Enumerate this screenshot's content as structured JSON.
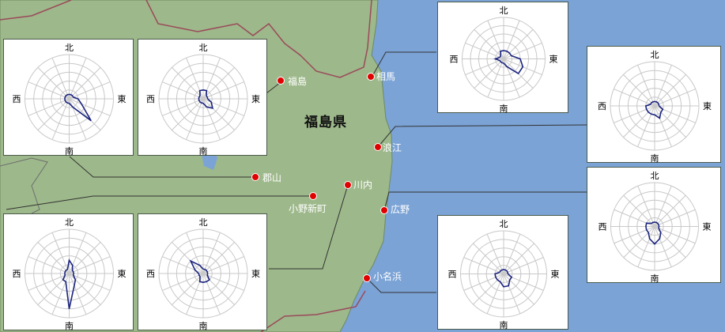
{
  "prefecture_label": "福島県",
  "compass": {
    "north": "北",
    "south": "南",
    "east": "東",
    "west": "西"
  },
  "colors": {
    "sea": "#7ba3d6",
    "land": "#9db88a",
    "border": "#9a4a5a",
    "marker": "#e00000",
    "rose_line": "#1a237e",
    "grid": "#c8c8c8"
  },
  "rose_scale_max": 10,
  "directions_order": [
    "N",
    "NNE",
    "NE",
    "ENE",
    "E",
    "ESE",
    "SE",
    "SSE",
    "S",
    "SSW",
    "SW",
    "WSW",
    "W",
    "WNW",
    "NW",
    "NNW"
  ],
  "stations": [
    {
      "id": "soma",
      "name": "相馬",
      "frequencies": [
        2,
        2,
        2,
        2,
        4,
        5,
        5,
        2,
        1,
        1,
        1,
        1,
        2,
        1,
        1,
        2
      ]
    },
    {
      "id": "fukushima",
      "name": "福島",
      "frequencies": [
        2,
        2,
        1,
        1,
        1,
        2,
        3,
        2,
        1,
        1,
        1,
        1,
        1,
        1,
        1,
        2
      ]
    },
    {
      "id": "namie",
      "name": "浪江",
      "frequencies": [
        1,
        1,
        1,
        1,
        1,
        2,
        2,
        3,
        2,
        2,
        2,
        2,
        2,
        1,
        1,
        1
      ]
    },
    {
      "id": "koriyama",
      "name": "郡山",
      "frequencies": [
        1,
        1,
        1,
        1,
        2,
        3,
        7,
        2,
        1,
        1,
        1,
        1,
        1,
        1,
        1,
        1
      ]
    },
    {
      "id": "hirono",
      "name": "広野",
      "frequencies": [
        1,
        1,
        1,
        1,
        1,
        1,
        2,
        3,
        4,
        3,
        2,
        2,
        2,
        2,
        1,
        1
      ]
    },
    {
      "id": "kawauchi",
      "name": "川内",
      "frequencies": [
        1,
        1,
        1,
        1,
        1,
        1,
        2,
        2,
        2,
        2,
        1,
        1,
        1,
        2,
        4,
        2
      ]
    },
    {
      "id": "onoshinmachi",
      "name": "小野新町",
      "frequencies": [
        3,
        2,
        1,
        1,
        1,
        1,
        2,
        3,
        8,
        2,
        2,
        1,
        1,
        1,
        1,
        1
      ]
    },
    {
      "id": "onahama",
      "name": "小名浜",
      "frequencies": [
        1,
        1,
        1,
        1,
        1,
        2,
        2,
        3,
        3,
        2,
        2,
        2,
        2,
        1,
        1,
        1
      ]
    }
  ]
}
